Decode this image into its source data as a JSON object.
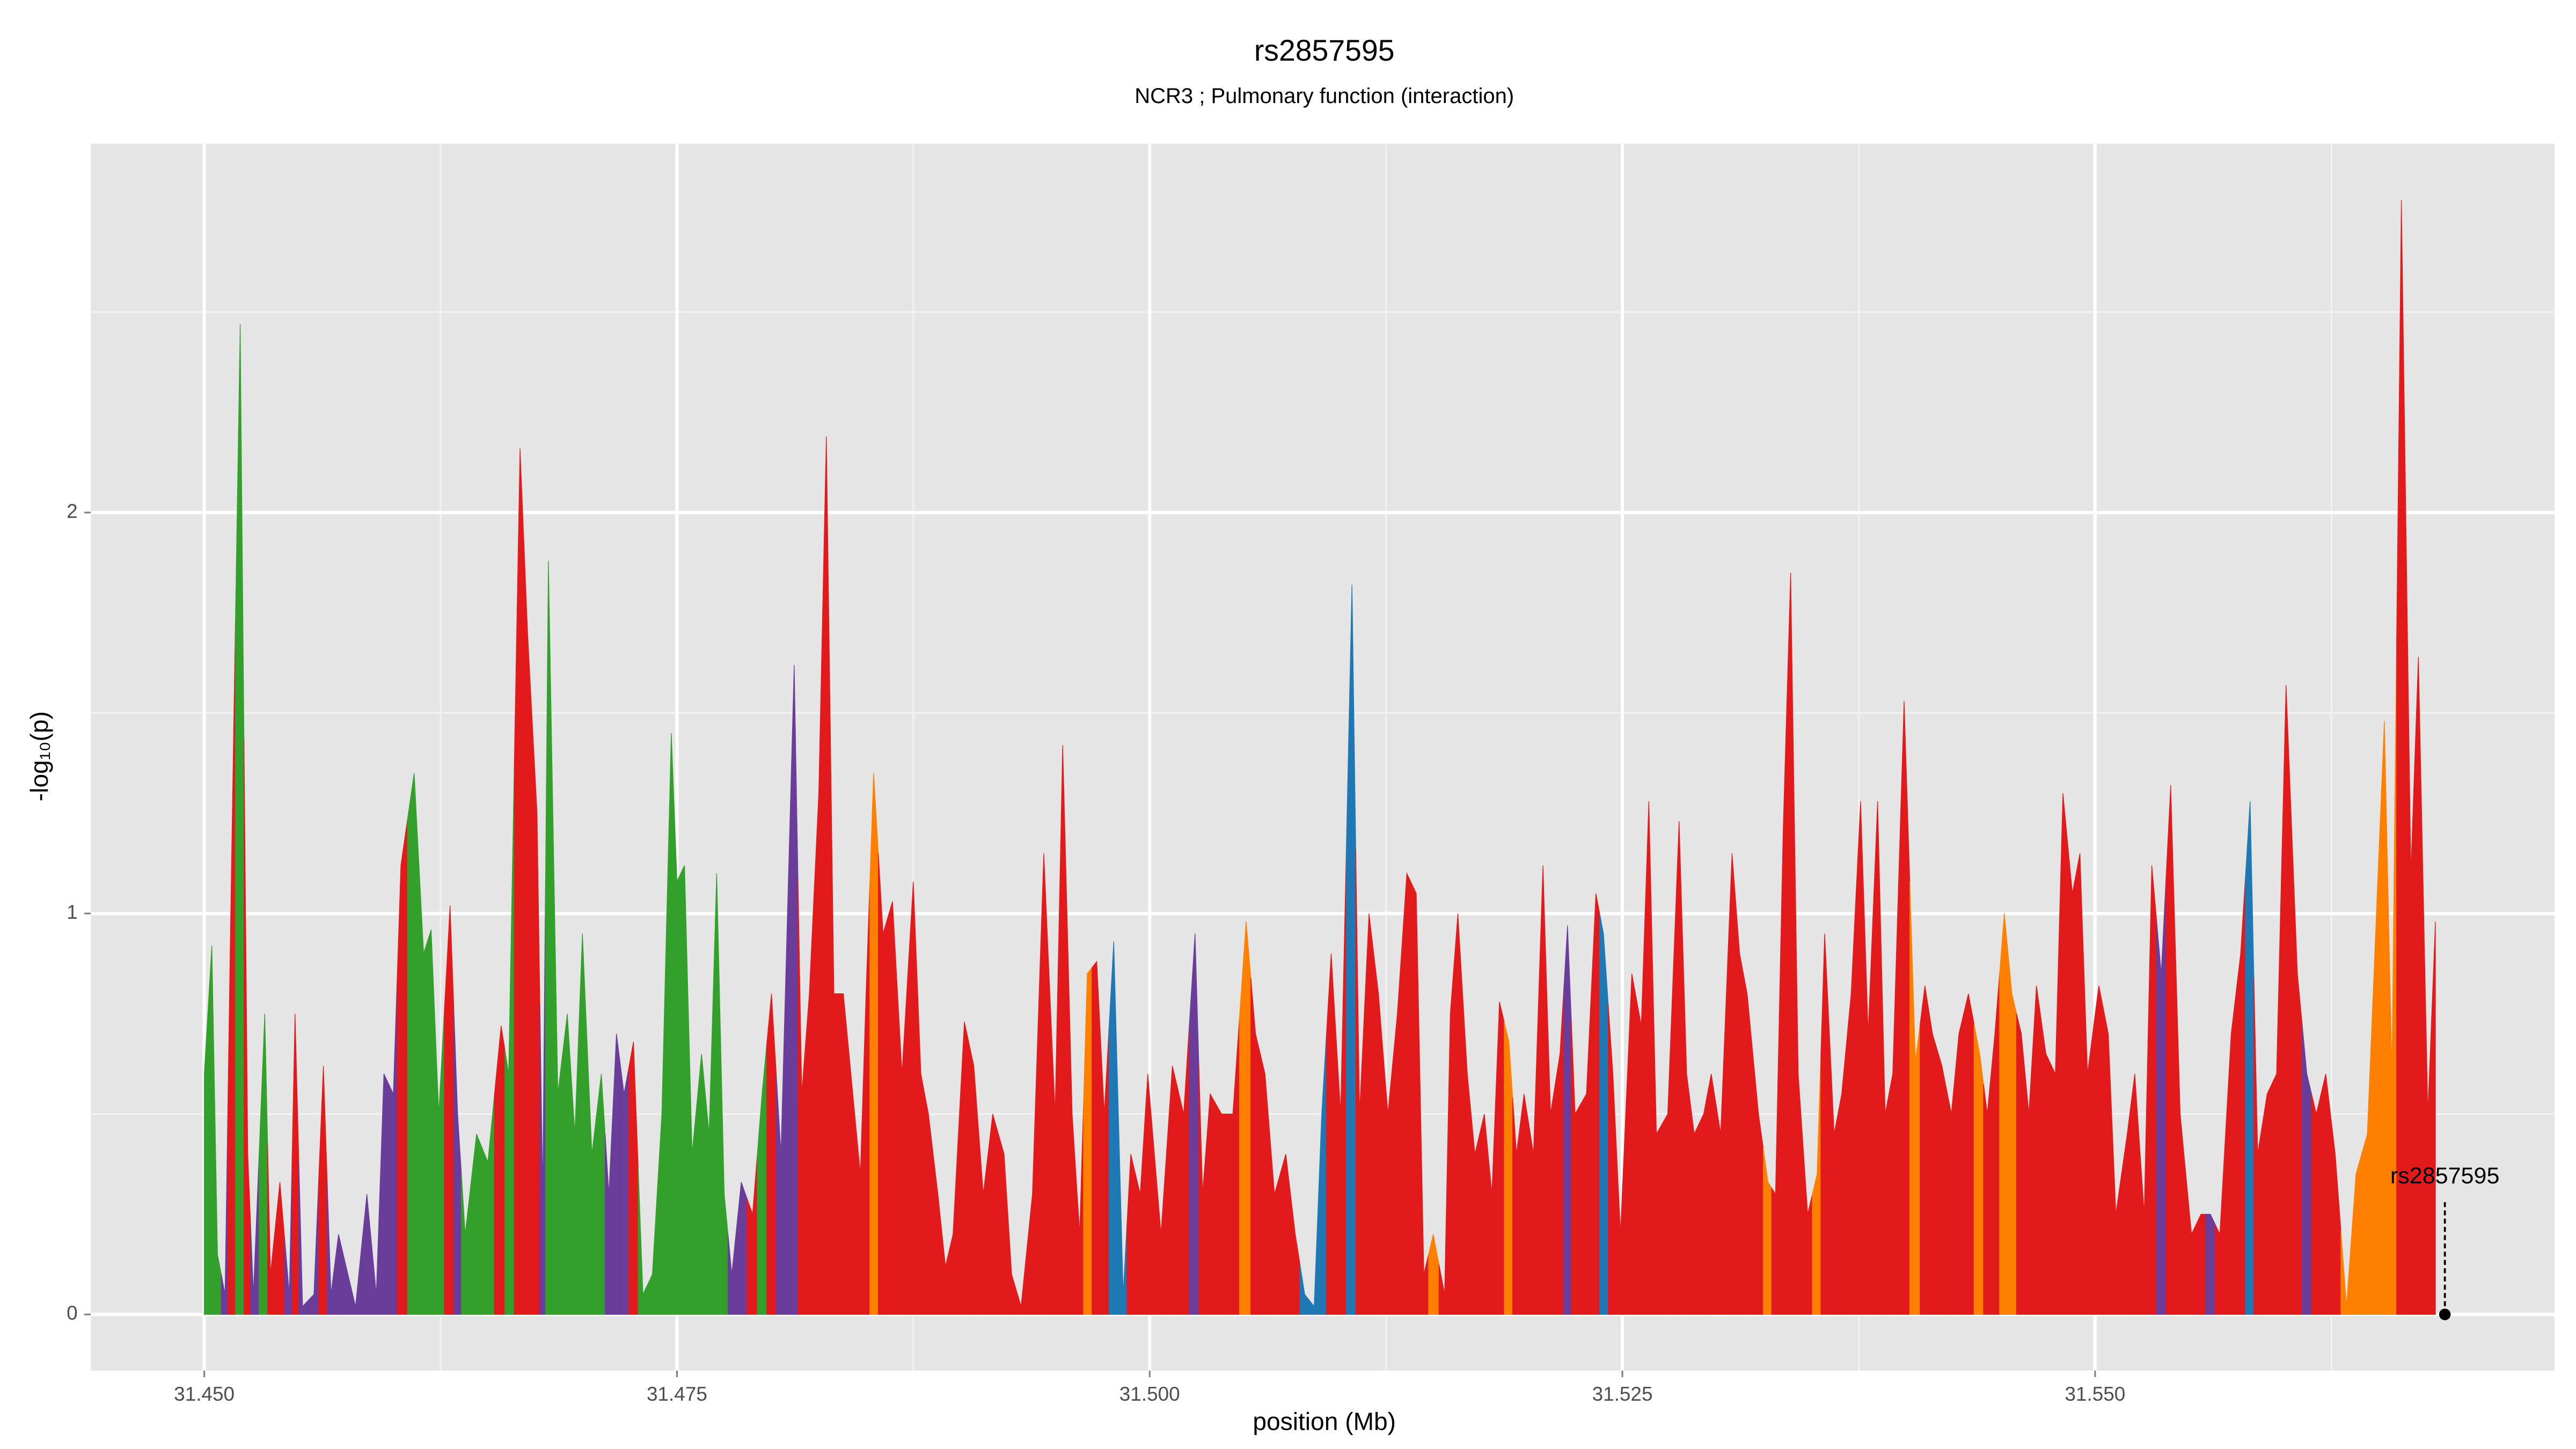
{
  "chart_data": {
    "type": "area",
    "title": "rs2857595",
    "subtitle": "NCR3 ; Pulmonary function (interaction)",
    "x_label": "position (Mb)",
    "y_label": "-log₁₀(p)",
    "xlim": [
      31.444,
      31.5743
    ],
    "ylim": [
      -0.14,
      2.92
    ],
    "xticks": [
      {
        "value": 31.45,
        "label": "31.450"
      },
      {
        "value": 31.475,
        "label": "31.475"
      },
      {
        "value": 31.5,
        "label": "31.500"
      },
      {
        "value": 31.525,
        "label": "31.525"
      },
      {
        "value": 31.55,
        "label": "31.550"
      }
    ],
    "yticks": [
      0,
      1,
      2
    ],
    "x_minor_grid": [
      31.4625,
      31.4875,
      31.5125,
      31.5375,
      31.5625
    ],
    "y_minor_grid": [
      0.5,
      1.5,
      2.5
    ],
    "grid": true,
    "x": [
      31.45,
      31.4504,
      31.4507,
      31.4511,
      31.4514,
      31.4519,
      31.4523,
      31.4526,
      31.4532,
      31.4535,
      31.454,
      31.4545,
      31.4548,
      31.4552,
      31.4558,
      31.4563,
      31.4567,
      31.4571,
      31.4575,
      31.458,
      31.4586,
      31.4591,
      31.4595,
      31.46,
      31.4604,
      31.4611,
      31.4616,
      31.462,
      31.4624,
      31.463,
      31.4634,
      31.4638,
      31.4644,
      31.465,
      31.4657,
      31.4661,
      31.4667,
      31.4671,
      31.4676,
      31.4679,
      31.4682,
      31.4687,
      31.4692,
      31.4696,
      31.47,
      31.4705,
      31.471,
      31.4714,
      31.4718,
      31.4722,
      31.4727,
      31.4732,
      31.4737,
      31.4742,
      31.4747,
      31.475,
      31.4754,
      31.4758,
      31.4763,
      31.4767,
      31.4771,
      31.4775,
      31.4779,
      31.4784,
      31.479,
      31.4795,
      31.48,
      31.4805,
      31.4812,
      31.4816,
      31.482,
      31.4825,
      31.4829,
      31.4833,
      31.4838,
      31.4842,
      31.4847,
      31.485,
      31.4854,
      31.4859,
      31.4864,
      31.4869,
      31.4875,
      31.4879,
      31.4883,
      31.4888,
      31.4892,
      31.4896,
      31.4902,
      31.4907,
      31.4912,
      31.4917,
      31.4923,
      31.4927,
      31.4932,
      31.4938,
      31.4944,
      31.495,
      31.4954,
      31.4959,
      31.4963,
      31.4967,
      31.4972,
      31.4976,
      31.4981,
      31.4986,
      31.499,
      31.4995,
      31.4999,
      31.5006,
      31.5012,
      31.5018,
      31.5024,
      31.5028,
      31.5032,
      31.5038,
      31.5044,
      31.5051,
      31.5056,
      31.5061,
      31.5066,
      31.5072,
      31.5077,
      31.5082,
      31.5087,
      31.5091,
      31.5096,
      31.5101,
      31.5107,
      31.5111,
      31.5116,
      31.5121,
      31.5126,
      31.5131,
      31.5136,
      31.5141,
      31.5145,
      31.515,
      31.5156,
      31.5159,
      31.5163,
      31.5168,
      31.5172,
      31.5177,
      31.5181,
      31.5185,
      31.519,
      31.5194,
      31.5198,
      31.5203,
      31.5208,
      31.5212,
      31.5217,
      31.5221,
      31.5225,
      31.5231,
      31.5236,
      31.524,
      31.5245,
      31.5249,
      31.5255,
      31.526,
      31.5264,
      31.5268,
      31.5274,
      31.528,
      31.5284,
      31.5288,
      31.5293,
      31.5297,
      31.5302,
      31.5308,
      31.5312,
      31.5316,
      31.5322,
      31.5327,
      31.5331,
      31.5335,
      31.5339,
      31.5343,
      31.5348,
      31.5353,
      31.5357,
      31.5362,
      31.5366,
      31.5371,
      31.5376,
      31.538,
      31.5385,
      31.5389,
      31.5393,
      31.5399,
      31.5405,
      31.541,
      31.5414,
      31.5419,
      31.5424,
      31.5428,
      31.5433,
      31.5439,
      31.5443,
      31.5447,
      31.5452,
      31.5456,
      31.5461,
      31.5465,
      31.5469,
      31.5474,
      31.5479,
      31.5483,
      31.5488,
      31.5492,
      31.5496,
      31.5502,
      31.5507,
      31.5511,
      31.5517,
      31.5521,
      31.5526,
      31.553,
      31.5535,
      31.554,
      31.5545,
      31.5551,
      31.5556,
      31.5561,
      31.5566,
      31.5572,
      31.5577,
      31.5582,
      31.5586,
      31.5591,
      31.5596,
      31.5601,
      31.5607,
      31.5612,
      31.5617,
      31.5622,
      31.5627,
      31.5633,
      31.5638,
      31.5644,
      31.5653,
      31.5657,
      31.5662,
      31.5667,
      31.5671,
      31.5676,
      31.568
    ],
    "values": [
      0.6,
      0.92,
      0.15,
      0.05,
      1.0,
      2.47,
      0.4,
      0.05,
      0.75,
      0.1,
      0.33,
      0.05,
      0.75,
      0.02,
      0.05,
      0.62,
      0.05,
      0.2,
      0.12,
      0.02,
      0.3,
      0.05,
      0.6,
      0.55,
      1.12,
      1.35,
      0.9,
      0.96,
      0.5,
      1.02,
      0.5,
      0.2,
      0.45,
      0.38,
      0.72,
      0.6,
      2.16,
      1.7,
      1.25,
      0.3,
      1.88,
      0.55,
      0.75,
      0.45,
      0.95,
      0.4,
      0.6,
      0.3,
      0.7,
      0.55,
      0.68,
      0.05,
      0.1,
      0.5,
      1.45,
      1.08,
      1.12,
      0.4,
      0.65,
      0.45,
      1.1,
      0.3,
      0.1,
      0.33,
      0.25,
      0.55,
      0.8,
      0.4,
      1.62,
      0.55,
      0.8,
      1.3,
      2.19,
      0.8,
      0.8,
      0.6,
      0.35,
      0.8,
      1.35,
      0.95,
      1.03,
      0.6,
      1.08,
      0.6,
      0.5,
      0.3,
      0.12,
      0.2,
      0.73,
      0.62,
      0.3,
      0.5,
      0.4,
      0.1,
      0.02,
      0.3,
      1.15,
      0.5,
      1.42,
      0.5,
      0.2,
      0.85,
      0.88,
      0.5,
      0.93,
      0.05,
      0.4,
      0.3,
      0.6,
      0.2,
      0.62,
      0.5,
      0.95,
      0.3,
      0.55,
      0.5,
      0.5,
      0.98,
      0.7,
      0.6,
      0.3,
      0.4,
      0.2,
      0.05,
      0.02,
      0.5,
      0.9,
      0.5,
      1.82,
      0.5,
      1.0,
      0.8,
      0.5,
      0.75,
      1.1,
      1.05,
      0.1,
      0.2,
      0.05,
      0.75,
      1.0,
      0.6,
      0.4,
      0.5,
      0.3,
      0.78,
      0.68,
      0.4,
      0.55,
      0.4,
      1.12,
      0.5,
      0.65,
      0.97,
      0.5,
      0.55,
      1.05,
      0.95,
      0.6,
      0.2,
      0.85,
      0.72,
      1.28,
      0.45,
      0.5,
      1.23,
      0.6,
      0.45,
      0.5,
      0.6,
      0.45,
      1.15,
      0.9,
      0.8,
      0.5,
      0.33,
      0.3,
      1.2,
      1.85,
      0.6,
      0.25,
      0.35,
      0.95,
      0.45,
      0.55,
      0.8,
      1.28,
      0.7,
      1.28,
      0.5,
      0.6,
      1.53,
      0.63,
      0.82,
      0.7,
      0.62,
      0.5,
      0.7,
      0.8,
      0.65,
      0.5,
      0.7,
      1.0,
      0.8,
      0.7,
      0.5,
      0.82,
      0.65,
      0.6,
      1.3,
      1.05,
      1.15,
      0.6,
      0.82,
      0.7,
      0.25,
      0.45,
      0.6,
      0.25,
      1.12,
      0.85,
      1.32,
      0.5,
      0.2,
      0.25,
      0.25,
      0.2,
      0.7,
      0.9,
      1.28,
      0.4,
      0.55,
      0.6,
      1.57,
      0.85,
      0.6,
      0.5,
      0.6,
      0.4,
      0.02,
      0.35,
      0.45,
      1.48,
      0.6,
      2.78,
      1.1,
      1.64,
      0.5,
      0.98
    ],
    "colors": [
      "#33a02c",
      "#33a02c",
      "#33a02c",
      "#6a3d9a",
      "#e31a1c",
      "#33a02c",
      "#e31a1c",
      "#6a3d9a",
      "#33a02c",
      "#e31a1c",
      "#e31a1c",
      "#6a3d9a",
      "#e31a1c",
      "#6a3d9a",
      "#6a3d9a",
      "#e31a1c",
      "#6a3d9a",
      "#6a3d9a",
      "#6a3d9a",
      "#6a3d9a",
      "#6a3d9a",
      "#6a3d9a",
      "#6a3d9a",
      "#6a3d9a",
      "#e31a1c",
      "#33a02c",
      "#33a02c",
      "#33a02c",
      "#33a02c",
      "#e31a1c",
      "#6a3d9a",
      "#33a02c",
      "#33a02c",
      "#33a02c",
      "#e31a1c",
      "#33a02c",
      "#e31a1c",
      "#e31a1c",
      "#e31a1c",
      "#6a3d9a",
      "#33a02c",
      "#33a02c",
      "#33a02c",
      "#33a02c",
      "#33a02c",
      "#33a02c",
      "#33a02c",
      "#6a3d9a",
      "#6a3d9a",
      "#6a3d9a",
      "#e31a1c",
      "#33a02c",
      "#33a02c",
      "#33a02c",
      "#33a02c",
      "#33a02c",
      "#33a02c",
      "#33a02c",
      "#33a02c",
      "#33a02c",
      "#33a02c",
      "#33a02c",
      "#6a3d9a",
      "#6a3d9a",
      "#e31a1c",
      "#33a02c",
      "#e31a1c",
      "#6a3d9a",
      "#6a3d9a",
      "#e31a1c",
      "#e31a1c",
      "#e31a1c",
      "#e31a1c",
      "#e31a1c",
      "#e31a1c",
      "#e31a1c",
      "#e31a1c",
      "#e31a1c",
      "#ff7f00",
      "#e31a1c",
      "#e31a1c",
      "#e31a1c",
      "#e31a1c",
      "#e31a1c",
      "#e31a1c",
      "#e31a1c",
      "#e31a1c",
      "#e31a1c",
      "#e31a1c",
      "#e31a1c",
      "#e31a1c",
      "#e31a1c",
      "#e31a1c",
      "#e31a1c",
      "#e31a1c",
      "#e31a1c",
      "#e31a1c",
      "#e31a1c",
      "#e31a1c",
      "#e31a1c",
      "#e31a1c",
      "#ff7f00",
      "#e31a1c",
      "#e31a1c",
      "#1f78b4",
      "#1f78b4",
      "#e31a1c",
      "#e31a1c",
      "#e31a1c",
      "#e31a1c",
      "#e31a1c",
      "#e31a1c",
      "#6a3d9a",
      "#e31a1c",
      "#e31a1c",
      "#e31a1c",
      "#e31a1c",
      "#ff7f00",
      "#e31a1c",
      "#e31a1c",
      "#e31a1c",
      "#e31a1c",
      "#e31a1c",
      "#1f78b4",
      "#1f78b4",
      "#1f78b4",
      "#e31a1c",
      "#e31a1c",
      "#1f78b4",
      "#e31a1c",
      "#e31a1c",
      "#e31a1c",
      "#e31a1c",
      "#e31a1c",
      "#e31a1c",
      "#e31a1c",
      "#e31a1c",
      "#ff7f00",
      "#e31a1c",
      "#e31a1c",
      "#e31a1c",
      "#e31a1c",
      "#e31a1c",
      "#e31a1c",
      "#e31a1c",
      "#e31a1c",
      "#ff7f00",
      "#e31a1c",
      "#e31a1c",
      "#e31a1c",
      "#e31a1c",
      "#e31a1c",
      "#e31a1c",
      "#6a3d9a",
      "#e31a1c",
      "#e31a1c",
      "#e31a1c",
      "#1f78b4",
      "#e31a1c",
      "#e31a1c",
      "#e31a1c",
      "#e31a1c",
      "#e31a1c",
      "#e31a1c",
      "#e31a1c",
      "#e31a1c",
      "#e31a1c",
      "#e31a1c",
      "#e31a1c",
      "#e31a1c",
      "#e31a1c",
      "#e31a1c",
      "#e31a1c",
      "#e31a1c",
      "#e31a1c",
      "#ff7f00",
      "#e31a1c",
      "#e31a1c",
      "#e31a1c",
      "#e31a1c",
      "#e31a1c",
      "#ff7f00",
      "#e31a1c",
      "#e31a1c",
      "#e31a1c",
      "#e31a1c",
      "#e31a1c",
      "#e31a1c",
      "#e31a1c",
      "#e31a1c",
      "#e31a1c",
      "#e31a1c",
      "#ff7f00",
      "#e31a1c",
      "#e31a1c",
      "#e31a1c",
      "#e31a1c",
      "#e31a1c",
      "#e31a1c",
      "#ff7f00",
      "#e31a1c",
      "#e31a1c",
      "#ff7f00",
      "#ff7f00",
      "#e31a1c",
      "#e31a1c",
      "#e31a1c",
      "#e31a1c",
      "#e31a1c",
      "#e31a1c",
      "#e31a1c",
      "#e31a1c",
      "#e31a1c",
      "#e31a1c",
      "#e31a1c",
      "#e31a1c",
      "#e31a1c",
      "#e31a1c",
      "#e31a1c",
      "#e31a1c",
      "#6a3d9a",
      "#e31a1c",
      "#e31a1c",
      "#e31a1c",
      "#e31a1c",
      "#6a3d9a",
      "#e31a1c",
      "#e31a1c",
      "#e31a1c",
      "#1f78b4",
      "#e31a1c",
      "#e31a1c",
      "#e31a1c",
      "#e31a1c",
      "#e31a1c",
      "#6a3d9a",
      "#e31a1c",
      "#e31a1c",
      "#e31a1c",
      "#ff7f00",
      "#ff7f00",
      "#ff7f00",
      "#ff7f00",
      "#ff7f00",
      "#e31a1c",
      "#e31a1c",
      "#e31a1c",
      "#e31a1c",
      "#e31a1c"
    ],
    "highlight": {
      "label": "rs2857595",
      "x": 31.5685,
      "value": 0
    }
  }
}
